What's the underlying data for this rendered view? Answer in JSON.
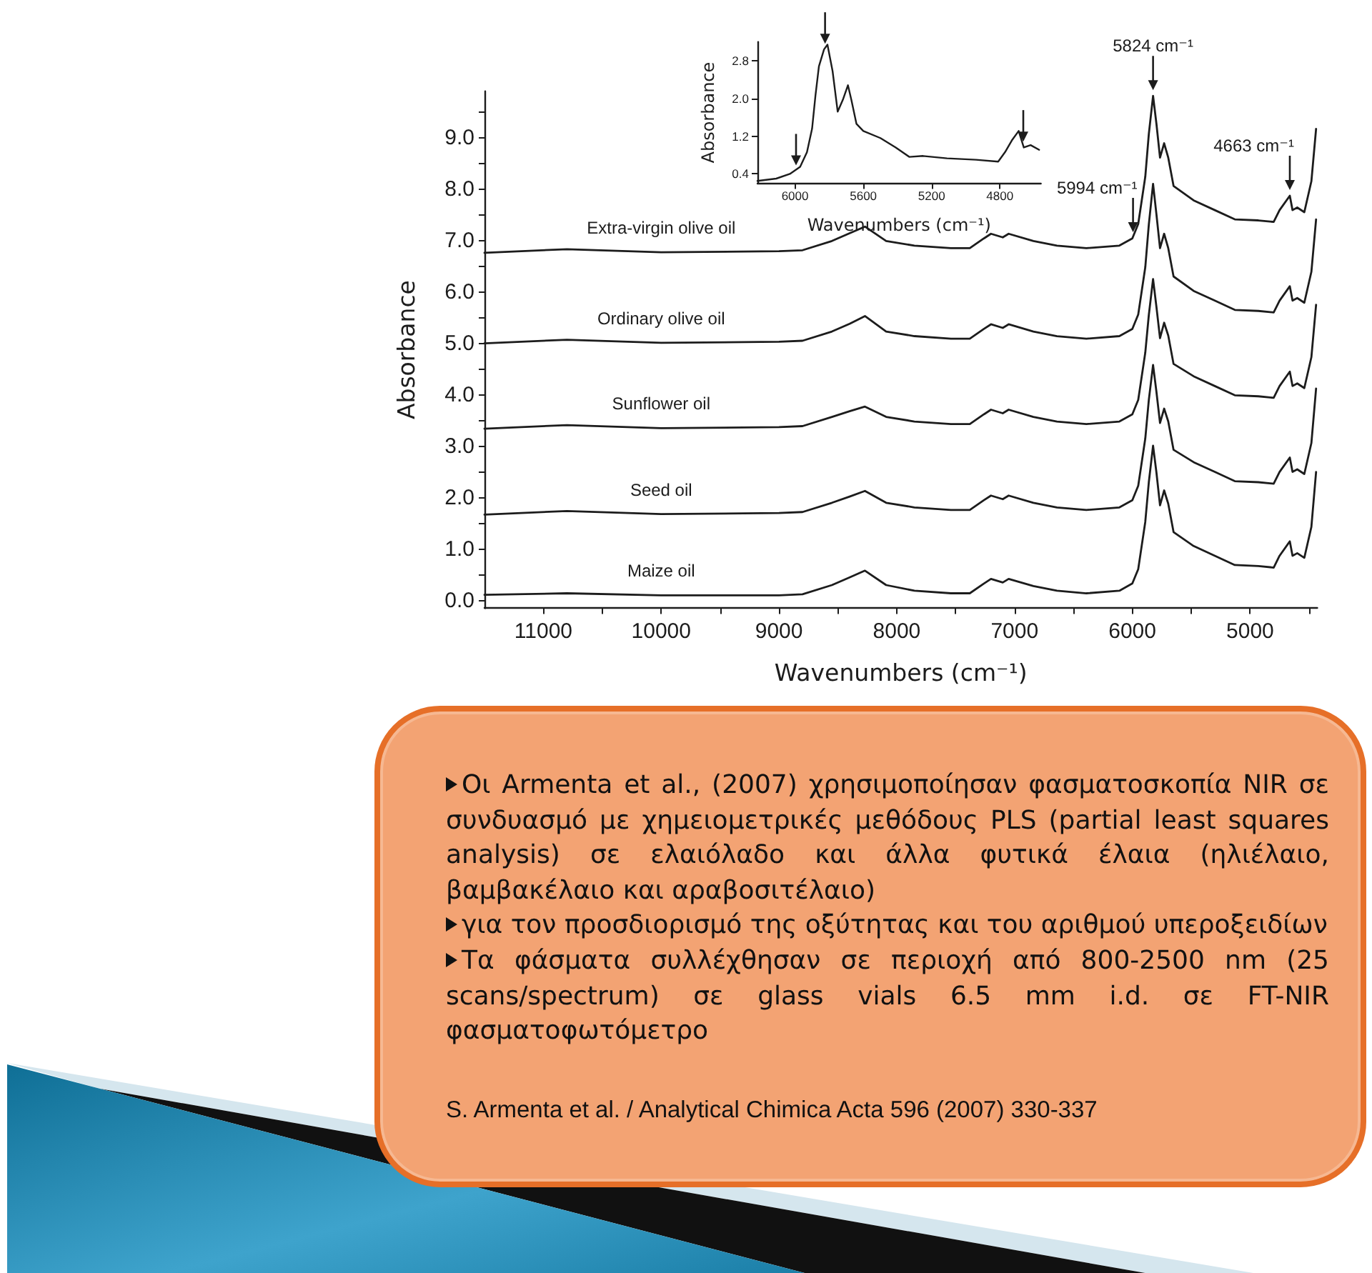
{
  "chart_data": [
    {
      "type": "line",
      "xlabel": "Wavenumbers (cm⁻¹)",
      "ylabel": "Absorbance",
      "marker": "none",
      "line_style": "solid",
      "x": [
        11500,
        10800,
        10000,
        9000,
        8800,
        8550,
        8400,
        8270,
        8090,
        7850,
        7540,
        7380,
        7260,
        7200,
        7100,
        7050,
        6840,
        6640,
        6390,
        6110,
        6000,
        5950,
        5890,
        5860,
        5824,
        5795,
        5765,
        5730,
        5695,
        5650,
        5480,
        5300,
        5130,
        4930,
        4800,
        4750,
        4663,
        4640,
        4600,
        4540,
        4480,
        4440
      ],
      "xlim": [
        11500,
        4430
      ],
      "xticks": [
        11000,
        {
          "value": 10500,
          "label": null
        },
        10000,
        {
          "value": 9500,
          "label": null
        },
        9000,
        {
          "value": 8500,
          "label": null
        },
        8000,
        {
          "value": 7500,
          "label": null
        },
        7000,
        {
          "value": 6500,
          "label": null
        },
        6000,
        {
          "value": 5500,
          "label": null
        },
        5000,
        {
          "value": 4500,
          "label": null
        }
      ],
      "ylim": [
        -0.15,
        9.9
      ],
      "yticks": [
        {
          "value": 0,
          "label": "0.0"
        },
        {
          "value": 0.5,
          "label": null
        },
        {
          "value": 1,
          "label": "1.0"
        },
        {
          "value": 1.5,
          "label": null
        },
        {
          "value": 2,
          "label": "2.0"
        },
        {
          "value": 2.5,
          "label": null
        },
        {
          "value": 3,
          "label": "3.0"
        },
        {
          "value": 3.5,
          "label": null
        },
        {
          "value": 4,
          "label": "4.0"
        },
        {
          "value": 4.5,
          "label": null
        },
        {
          "value": 5,
          "label": "5.0"
        },
        {
          "value": 5.5,
          "label": null
        },
        {
          "value": 6,
          "label": "6.0"
        },
        {
          "value": 6.5,
          "label": null
        },
        {
          "value": 7,
          "label": "7.0"
        },
        {
          "value": 7.5,
          "label": null
        },
        {
          "value": 8,
          "label": "8.0"
        },
        {
          "value": 8.5,
          "label": null
        },
        {
          "value": 9,
          "label": "9.0"
        },
        {
          "value": 9.5,
          "label": null
        }
      ],
      "series": [
        {
          "name": "Extra-virgin olive oil",
          "color": "#1c1c1c",
          "values": [
            6.76,
            6.83,
            6.77,
            6.79,
            6.81,
            6.99,
            7.14,
            7.27,
            6.99,
            6.9,
            6.85,
            6.85,
            7.04,
            7.13,
            7.06,
            7.13,
            6.99,
            6.9,
            6.85,
            6.9,
            7.04,
            7.32,
            8.24,
            9.07,
            9.81,
            9.26,
            8.61,
            8.89,
            8.61,
            8.06,
            7.78,
            7.59,
            7.41,
            7.39,
            7.36,
            7.59,
            7.87,
            7.59,
            7.64,
            7.55,
            8.15,
            9.17
          ]
        },
        {
          "name": "Ordinary olive oil",
          "color": "#1c1c1c",
          "values": [
            5.0,
            5.07,
            5.01,
            5.03,
            5.05,
            5.23,
            5.38,
            5.53,
            5.23,
            5.14,
            5.09,
            5.09,
            5.28,
            5.37,
            5.3,
            5.37,
            5.23,
            5.14,
            5.09,
            5.14,
            5.28,
            5.56,
            6.48,
            7.31,
            8.1,
            7.5,
            6.85,
            7.13,
            6.85,
            6.3,
            6.02,
            5.83,
            5.65,
            5.63,
            5.6,
            5.83,
            6.11,
            5.83,
            5.88,
            5.79,
            6.39,
            7.41
          ]
        },
        {
          "name": "Sunflower oil",
          "color": "#1c1c1c",
          "values": [
            3.34,
            3.41,
            3.35,
            3.37,
            3.39,
            3.57,
            3.68,
            3.77,
            3.57,
            3.48,
            3.43,
            3.43,
            3.62,
            3.71,
            3.64,
            3.71,
            3.57,
            3.48,
            3.43,
            3.48,
            3.62,
            3.9,
            4.82,
            5.55,
            6.25,
            5.7,
            5.1,
            5.4,
            5.15,
            4.6,
            4.36,
            4.17,
            3.99,
            3.97,
            3.94,
            4.17,
            4.45,
            4.17,
            4.22,
            4.13,
            4.73,
            5.75
          ]
        },
        {
          "name": "Seed oil",
          "color": "#1c1c1c",
          "values": [
            1.67,
            1.74,
            1.68,
            1.7,
            1.72,
            1.9,
            2.02,
            2.13,
            1.9,
            1.81,
            1.76,
            1.76,
            1.95,
            2.04,
            1.97,
            2.04,
            1.9,
            1.81,
            1.76,
            1.81,
            1.95,
            2.23,
            3.15,
            3.9,
            4.58,
            4.05,
            3.45,
            3.73,
            3.48,
            2.93,
            2.69,
            2.5,
            2.32,
            2.3,
            2.27,
            2.5,
            2.78,
            2.5,
            2.55,
            2.46,
            3.06,
            4.12
          ]
        },
        {
          "name": "Maize oil",
          "color": "#1c1c1c",
          "values": [
            0.11,
            0.14,
            0.1,
            0.1,
            0.12,
            0.3,
            0.45,
            0.58,
            0.3,
            0.19,
            0.14,
            0.14,
            0.33,
            0.42,
            0.35,
            0.42,
            0.28,
            0.19,
            0.14,
            0.19,
            0.33,
            0.61,
            1.53,
            2.3,
            3.01,
            2.48,
            1.85,
            2.14,
            1.88,
            1.33,
            1.06,
            0.87,
            0.69,
            0.67,
            0.64,
            0.87,
            1.15,
            0.87,
            0.92,
            0.83,
            1.43,
            2.5
          ]
        }
      ],
      "annotations": [
        {
          "text": "5824 cm⁻¹",
          "x": 5824,
          "y": 9.81
        },
        {
          "text": "5994 cm⁻¹",
          "x": 5994,
          "y": 7.05
        },
        {
          "text": "4663 cm⁻¹",
          "x": 4663,
          "y": 7.87
        }
      ]
    },
    {
      "type": "line",
      "xlabel": "Wavenumbers (cm⁻¹)",
      "ylabel": "Absorbance",
      "marker": "none",
      "line_style": "solid",
      "x": [
        6220,
        6110,
        6030,
        5970,
        5930,
        5900,
        5880,
        5860,
        5830,
        5810,
        5780,
        5750,
        5720,
        5690,
        5670,
        5640,
        5600,
        5500,
        5410,
        5330,
        5250,
        5110,
        4940,
        4810,
        4770,
        4730,
        4690,
        4660,
        4620,
        4570
      ],
      "xlim": [
        6220,
        4560
      ],
      "xticks": [
        6000,
        5600,
        5200,
        4800
      ],
      "ylim": [
        0.2,
        3.2
      ],
      "yticks": [
        0.4,
        1.2,
        {
          "value": 2,
          "label": "2.0"
        },
        2.8
      ],
      "series": [
        {
          "color": "#1c1c1c",
          "values": [
            0.25,
            0.3,
            0.4,
            0.55,
            0.86,
            1.36,
            2.07,
            2.68,
            3.04,
            3.14,
            2.58,
            1.72,
            1.97,
            2.28,
            1.97,
            1.46,
            1.31,
            1.16,
            0.96,
            0.76,
            0.78,
            0.73,
            0.7,
            0.66,
            0.86,
            1.11,
            1.31,
            0.96,
            1.01,
            0.91
          ]
        }
      ]
    },
    {
      "type": "other",
      "annotations": [
        "Οι Armenta et al., (2007) χρησιμοποίησαν φασματοσκοπία NIR σε συνδυασμό με χημειομετρικές μεθόδους PLS (partial least squares analysis) σε ελαιόλαδο και άλλα φυτικά έλαια (ηλιέλαιο, βαμβακέλαιο και αραβοσιτέλαιο)",
        "για τον προσδιορισμό της οξύτητας και του αριθμού υπεροξειδίων",
        "Τα φάσματα συλλέχθησαν σε περιοχή από 800-2500 nm (25 scans/spectrum) σε glass vials 6.5 mm i.d. σε FT-NIR φασματοφωτόμετρο",
        "S. Armenta et al. / Analytical Chimica Acta 596 (2007) 330-337"
      ]
    }
  ]
}
